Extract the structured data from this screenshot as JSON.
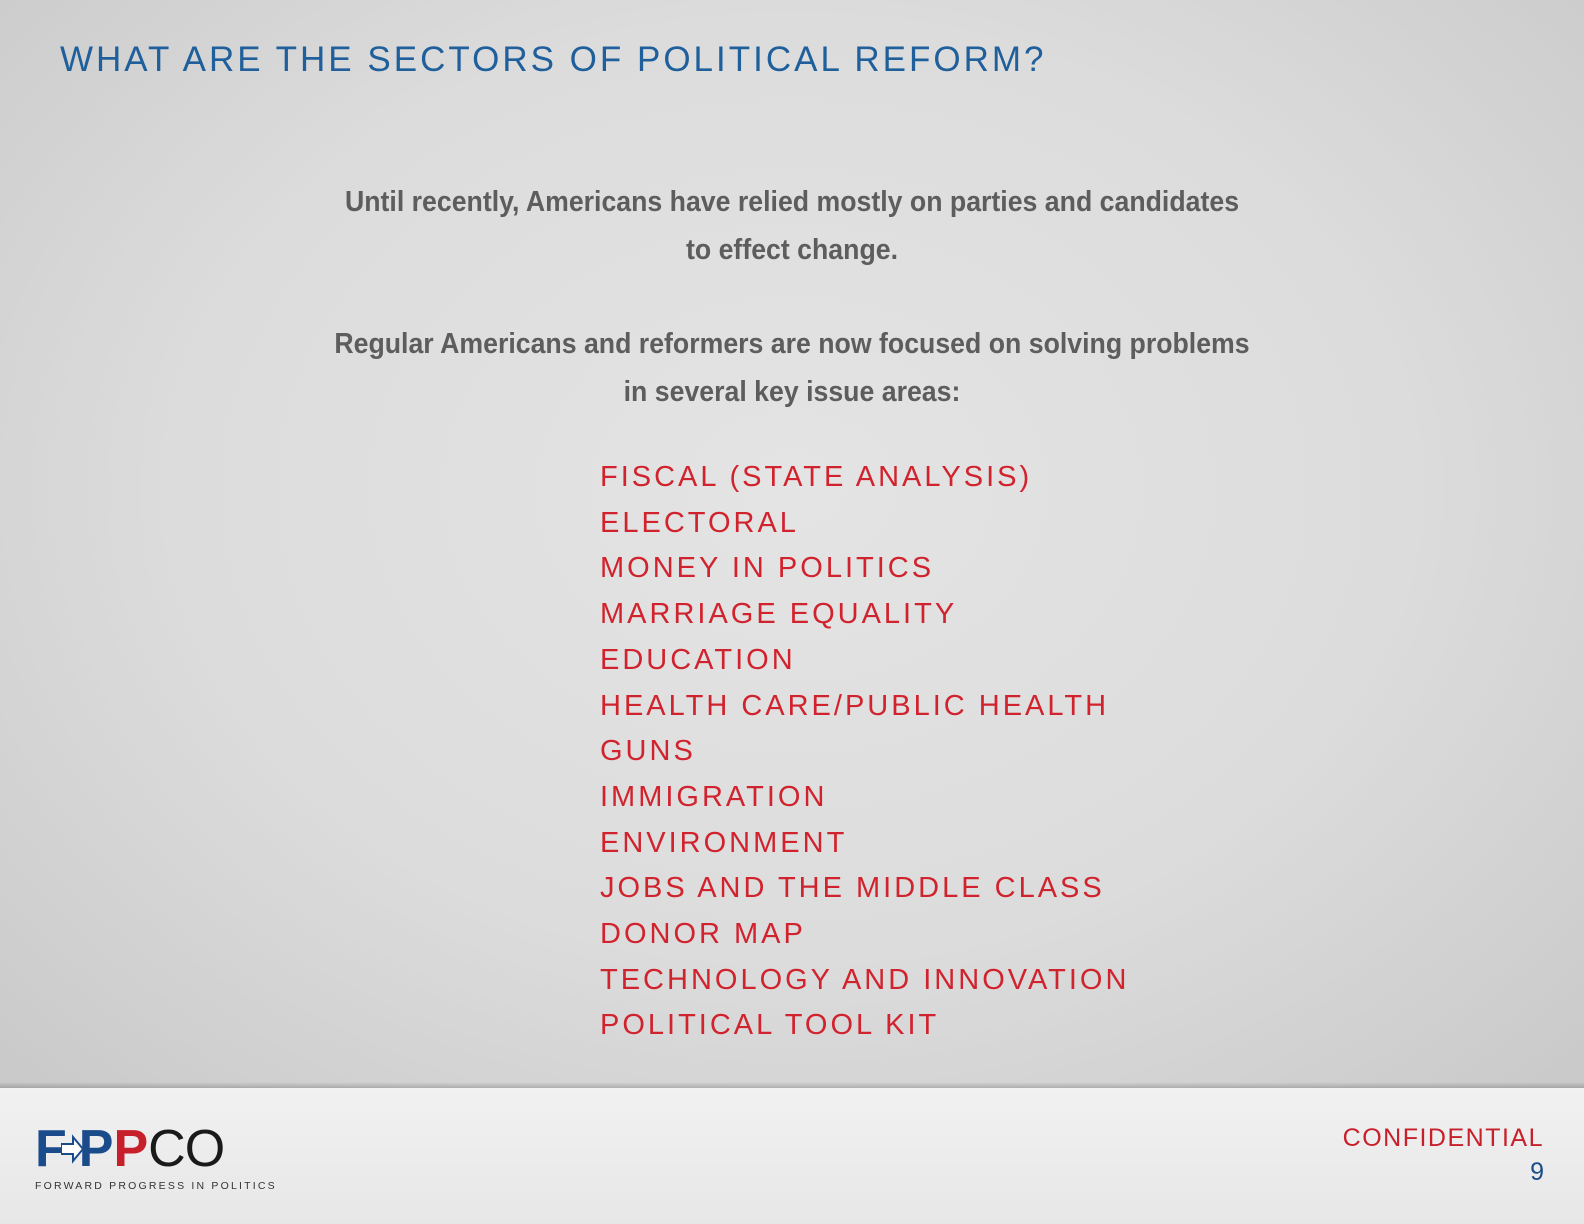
{
  "slide": {
    "title": "WHAT ARE THE SECTORS OF POLITICAL REFORM?",
    "intro_line_1": "Until recently, Americans have relied mostly on parties and candidates to effect change.",
    "intro_line_2": "Regular Americans and reformers are now focused on solving problems in several key issue areas:",
    "sectors": [
      "FISCAL (STATE ANALYSIS)",
      "ELECTORAL",
      "MONEY IN POLITICS",
      "MARRIAGE EQUALITY",
      "EDUCATION",
      "HEALTH CARE/PUBLIC HEALTH",
      "GUNS",
      "IMMIGRATION",
      "ENVIRONMENT",
      "JOBS AND THE MIDDLE CLASS",
      "DONOR MAP",
      "TECHNOLOGY AND INNOVATION",
      "POLITICAL TOOL KIT"
    ]
  },
  "footer": {
    "logo_text_f": "F",
    "logo_text_p1": "P",
    "logo_text_p2": "P",
    "logo_text_co": "CO",
    "logo_tagline": "FORWARD PROGRESS IN POLITICS",
    "confidential": "CONFIDENTIAL",
    "page_number": "9"
  },
  "colors": {
    "title_blue": "#1f5f9b",
    "sector_red": "#d1232e",
    "body_gray": "#5d5d5d",
    "logo_blue": "#1a4b8a",
    "logo_red": "#c8202b"
  }
}
